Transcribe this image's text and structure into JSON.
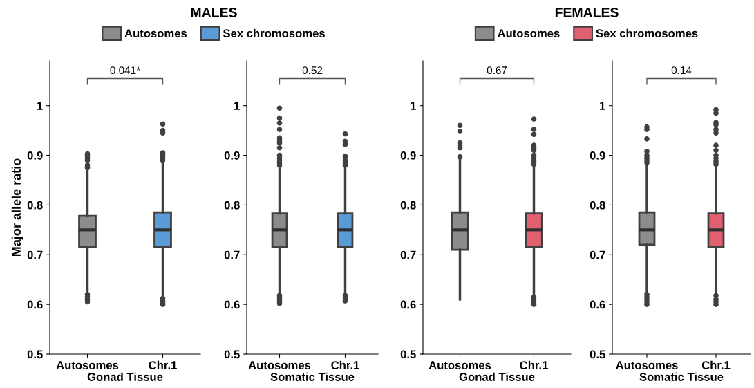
{
  "chart_data": [
    {
      "type": "box",
      "title": "MALES",
      "ylabel": "Major allele ratio",
      "xlabel": "Gonad Tissue",
      "categories": [
        "Autosomes",
        "Chr.1"
      ],
      "ylim": [
        0.5,
        1.09
      ],
      "yticks": [
        0.5,
        0.6,
        0.7,
        0.8,
        0.9,
        1
      ],
      "legend": "top",
      "grid": false,
      "annotations": [
        "0.041*"
      ],
      "series": [
        {
          "name": "Autosomes",
          "color": "#8c8c8c",
          "boxes": [
            {
              "low": 0.62,
              "q1": 0.715,
              "median": 0.75,
              "q3": 0.778,
              "high": 0.872,
              "outliers": [
                0.605,
                0.61,
                0.615,
                0.62,
                0.875,
                0.88,
                0.89,
                0.895,
                0.9,
                0.903
              ]
            },
            null
          ]
        },
        {
          "name": "Sex chromosomes",
          "color": "#5b9bd5",
          "boxes": [
            null,
            {
              "low": 0.613,
              "q1": 0.716,
              "median": 0.75,
              "q3": 0.785,
              "high": 0.888,
              "outliers": [
                0.6,
                0.603,
                0.607,
                0.612,
                0.89,
                0.895,
                0.9,
                0.905,
                0.945,
                0.95,
                0.963
              ]
            }
          ]
        }
      ]
    },
    {
      "type": "box",
      "xlabel": "Somatic Tissue",
      "categories": [
        "Autosomes",
        "Chr.1"
      ],
      "ylim": [
        0.5,
        1.09
      ],
      "yticks": [
        0.5,
        0.6,
        0.7,
        0.8,
        0.9,
        1
      ],
      "grid": false,
      "annotations": [
        "0.52"
      ],
      "series": [
        {
          "color": "#8c8c8c",
          "boxes": [
            {
              "low": 0.62,
              "q1": 0.716,
              "median": 0.75,
              "q3": 0.783,
              "high": 0.878,
              "outliers": [
                0.602,
                0.607,
                0.612,
                0.618,
                0.88,
                0.885,
                0.89,
                0.895,
                0.9,
                0.915,
                0.925,
                0.93,
                0.935,
                0.952,
                0.965,
                0.975,
                0.995
              ]
            },
            null
          ]
        },
        {
          "color": "#5b9bd5",
          "boxes": [
            null,
            {
              "low": 0.62,
              "q1": 0.716,
              "median": 0.75,
              "q3": 0.783,
              "high": 0.878,
              "outliers": [
                0.607,
                0.612,
                0.618,
                0.88,
                0.885,
                0.89,
                0.898,
                0.922,
                0.928,
                0.943
              ]
            }
          ]
        }
      ]
    },
    {
      "type": "box",
      "title": "FEMALES",
      "xlabel": "Gonad Tissue",
      "categories": [
        "Autosomes",
        "Chr.1"
      ],
      "ylim": [
        0.5,
        1.09
      ],
      "yticks": [
        0.5,
        0.6,
        0.7,
        0.8,
        0.9,
        1
      ],
      "legend": "top",
      "grid": false,
      "annotations": [
        "0.67"
      ],
      "series": [
        {
          "name": "Autosomes",
          "color": "#8c8c8c",
          "boxes": [
            {
              "low": 0.61,
              "q1": 0.71,
              "median": 0.75,
              "q3": 0.785,
              "high": 0.89,
              "outliers": [
                0.897,
                0.915,
                0.92,
                0.925,
                0.948,
                0.96
              ]
            },
            null
          ]
        },
        {
          "name": "Sex chromosomes",
          "color": "#e06070",
          "boxes": [
            null,
            {
              "low": 0.617,
              "q1": 0.715,
              "median": 0.75,
              "q3": 0.783,
              "high": 0.88,
              "outliers": [
                0.6,
                0.605,
                0.61,
                0.615,
                0.882,
                0.888,
                0.894,
                0.9,
                0.91,
                0.915,
                0.92,
                0.942,
                0.952,
                0.973
              ]
            }
          ]
        }
      ]
    },
    {
      "type": "box",
      "xlabel": "Somatic Tissue",
      "categories": [
        "Autosomes",
        "Chr.1"
      ],
      "ylim": [
        0.5,
        1.09
      ],
      "yticks": [
        0.5,
        0.6,
        0.7,
        0.8,
        0.9,
        1
      ],
      "grid": false,
      "annotations": [
        "0.14"
      ],
      "series": [
        {
          "color": "#8c8c8c",
          "boxes": [
            {
              "low": 0.622,
              "q1": 0.72,
              "median": 0.75,
              "q3": 0.785,
              "high": 0.883,
              "outliers": [
                0.6,
                0.605,
                0.61,
                0.615,
                0.62,
                0.885,
                0.89,
                0.895,
                0.9,
                0.908,
                0.933,
                0.952,
                0.957
              ]
            },
            null
          ]
        },
        {
          "color": "#e06070",
          "boxes": [
            null,
            {
              "low": 0.62,
              "q1": 0.716,
              "median": 0.75,
              "q3": 0.783,
              "high": 0.88,
              "outliers": [
                0.6,
                0.605,
                0.61,
                0.618,
                0.882,
                0.888,
                0.894,
                0.9,
                0.91,
                0.92,
                0.945,
                0.952,
                0.962,
                0.966,
                0.985,
                0.992
              ]
            }
          ]
        }
      ]
    }
  ]
}
